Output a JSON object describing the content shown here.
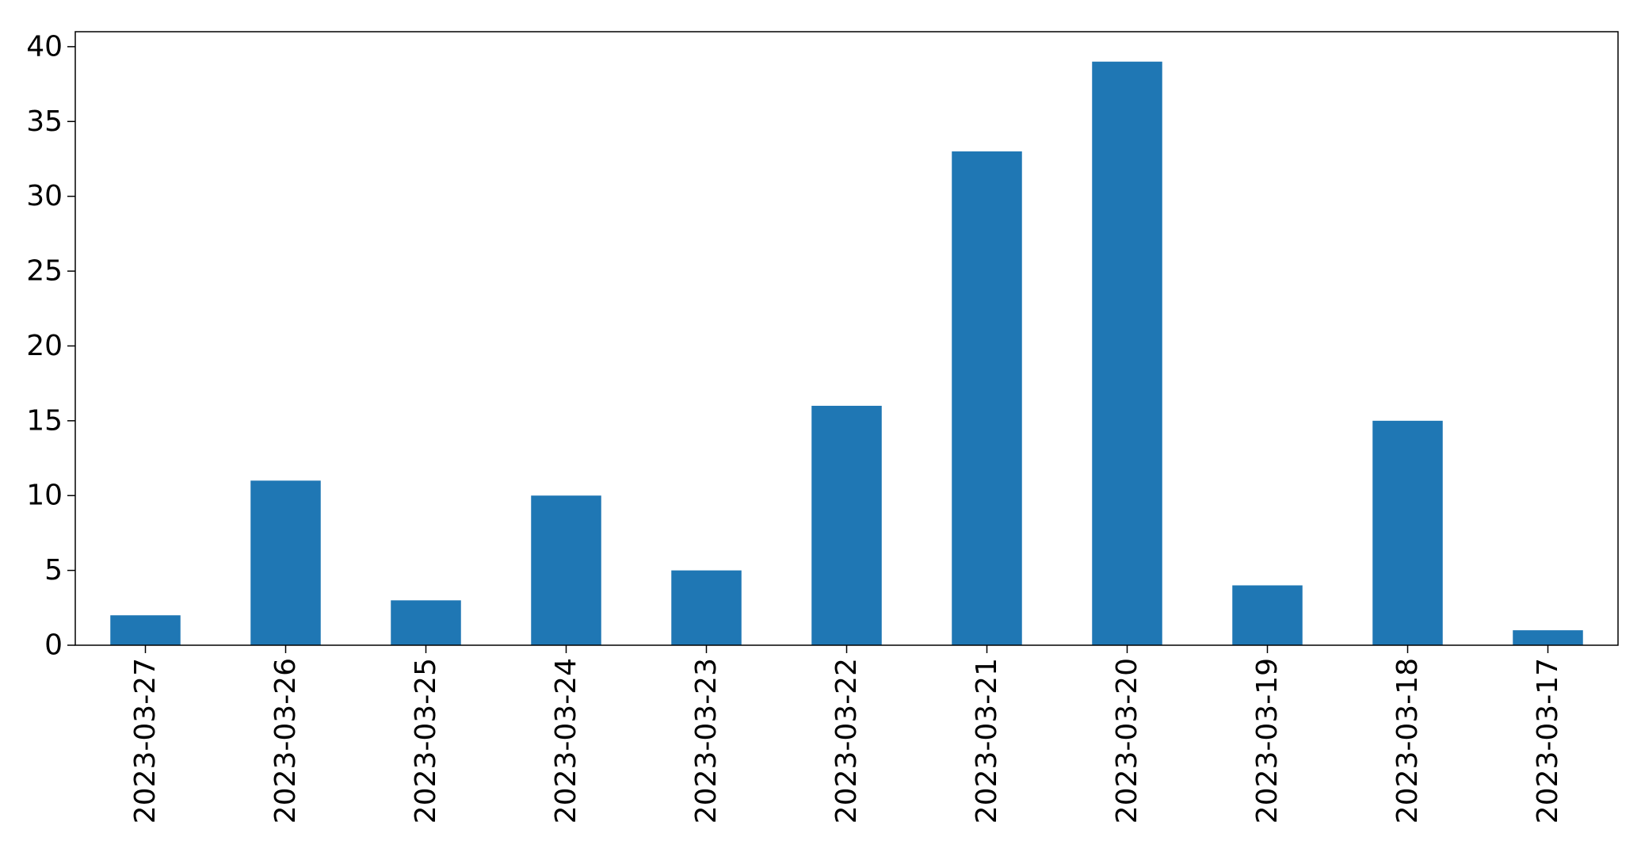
{
  "chart_data": {
    "type": "bar",
    "categories": [
      "2023-03-27",
      "2023-03-26",
      "2023-03-25",
      "2023-03-24",
      "2023-03-23",
      "2023-03-22",
      "2023-03-21",
      "2023-03-20",
      "2023-03-19",
      "2023-03-18",
      "2023-03-17"
    ],
    "values": [
      2,
      11,
      3,
      10,
      5,
      16,
      33,
      39,
      4,
      15,
      1
    ],
    "title": "",
    "xlabel": "",
    "ylabel": "",
    "ylim": [
      0,
      41
    ],
    "yticks": [
      0,
      5,
      10,
      15,
      20,
      25,
      30,
      35,
      40
    ],
    "grid": false,
    "legend": "none",
    "bar_color": "#1f77b4"
  }
}
